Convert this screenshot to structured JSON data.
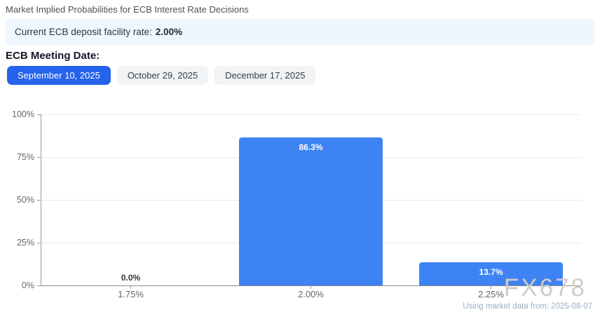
{
  "page": {
    "title": "Market Implied Probabilities for ECB Interest Rate Decisions",
    "banner": {
      "label": "Current ECB deposit facility rate:",
      "value": "2.00%"
    },
    "meeting_date_label": "ECB Meeting Date:",
    "meeting_buttons": [
      {
        "label": "September 10, 2025",
        "active": true
      },
      {
        "label": "October 29, 2025",
        "active": false
      },
      {
        "label": "December 17, 2025",
        "active": false
      }
    ],
    "watermark": "FX678",
    "footnote": "Using market data from: 2025-08-07"
  },
  "colors": {
    "accent_blue": "#2563eb",
    "bar_blue": "#3e83f4",
    "banner_bg": "#eff6ff",
    "grid": "#e9e9e9",
    "axis": "#9b9b9b",
    "tick_label": "#666666",
    "outside_label": "#333333",
    "inside_label": "#ffffff",
    "watermark": "#d3ccc6",
    "footnote": "#9badc4"
  },
  "chart_data": {
    "type": "bar",
    "title": "Market Implied Probabilities for ECB Interest Rate Decisions",
    "categories": [
      "1.75%",
      "2.00%",
      "2.25%"
    ],
    "values": [
      0.0,
      86.3,
      13.7
    ],
    "value_labels": [
      "0.0%",
      "86.3%",
      "13.7%"
    ],
    "xlabel": "",
    "ylabel": "",
    "ylim": [
      0,
      100
    ],
    "yticks": [
      0,
      25,
      50,
      75,
      100
    ],
    "ytick_labels": [
      "0%",
      "25%",
      "50%",
      "75%",
      "100%"
    ],
    "grid": true,
    "legend": false
  }
}
